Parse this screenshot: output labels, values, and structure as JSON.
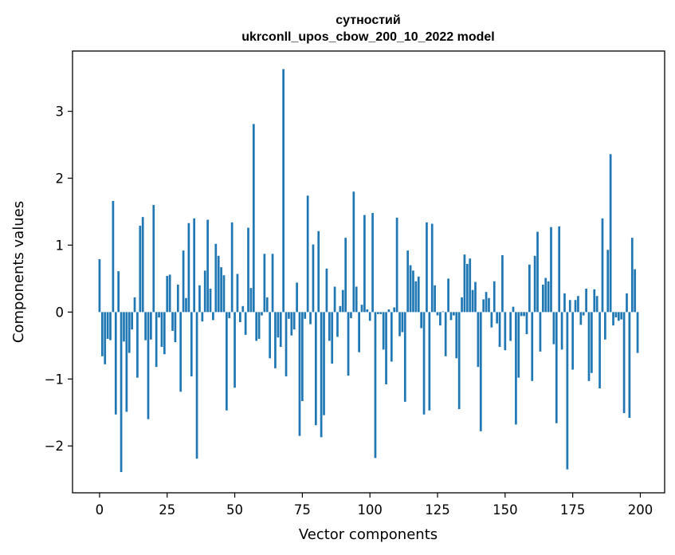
{
  "chart_data": {
    "type": "bar",
    "title_line1": "сутностий",
    "title_line2": "ukrconll_upos_cbow_200_10_2022 model",
    "xlabel": "Vector components",
    "ylabel": "Components values",
    "xlim": [
      -10,
      209
    ],
    "ylim": [
      -2.7,
      3.9
    ],
    "xticks": [
      0,
      25,
      50,
      75,
      100,
      125,
      150,
      175,
      200
    ],
    "xtick_labels": [
      "0",
      "25",
      "50",
      "75",
      "100",
      "125",
      "150",
      "175",
      "200"
    ],
    "yticks": [
      -2,
      -1,
      0,
      1,
      2,
      3
    ],
    "ytick_labels": [
      "−2",
      "−1",
      "0",
      "1",
      "2",
      "3"
    ],
    "grid": false,
    "bar_color": "#1f77b4",
    "x": [
      0,
      1,
      2,
      3,
      4,
      5,
      6,
      7,
      8,
      9,
      10,
      11,
      12,
      13,
      14,
      15,
      16,
      17,
      18,
      19,
      20,
      21,
      22,
      23,
      24,
      25,
      26,
      27,
      28,
      29,
      30,
      31,
      32,
      33,
      34,
      35,
      36,
      37,
      38,
      39,
      40,
      41,
      42,
      43,
      44,
      45,
      46,
      47,
      48,
      49,
      50,
      51,
      52,
      53,
      54,
      55,
      56,
      57,
      58,
      59,
      60,
      61,
      62,
      63,
      64,
      65,
      66,
      67,
      68,
      69,
      70,
      71,
      72,
      73,
      74,
      75,
      76,
      77,
      78,
      79,
      80,
      81,
      82,
      83,
      84,
      85,
      86,
      87,
      88,
      89,
      90,
      91,
      92,
      93,
      94,
      95,
      96,
      97,
      98,
      99,
      100,
      101,
      102,
      103,
      104,
      105,
      106,
      107,
      108,
      109,
      110,
      111,
      112,
      113,
      114,
      115,
      116,
      117,
      118,
      119,
      120,
      121,
      122,
      123,
      124,
      125,
      126,
      127,
      128,
      129,
      130,
      131,
      132,
      133,
      134,
      135,
      136,
      137,
      138,
      139,
      140,
      141,
      142,
      143,
      144,
      145,
      146,
      147,
      148,
      149,
      150,
      151,
      152,
      153,
      154,
      155,
      156,
      157,
      158,
      159,
      160,
      161,
      162,
      163,
      164,
      165,
      166,
      167,
      168,
      169,
      170,
      171,
      172,
      173,
      174,
      175,
      176,
      177,
      178,
      179,
      180,
      181,
      182,
      183,
      184,
      185,
      186,
      187,
      188,
      189,
      190,
      191,
      192,
      193,
      194,
      195,
      196,
      197,
      198,
      199
    ],
    "values": [
      0.79,
      -0.66,
      -0.78,
      -0.4,
      -0.42,
      1.66,
      -1.53,
      0.61,
      -2.39,
      -0.44,
      -1.49,
      -0.61,
      -0.26,
      0.22,
      -0.98,
      1.29,
      1.42,
      -0.42,
      -1.6,
      -0.41,
      1.6,
      -0.82,
      -0.08,
      -0.52,
      -0.63,
      0.54,
      0.56,
      -0.28,
      -0.45,
      0.41,
      -1.19,
      0.92,
      0.21,
      1.33,
      -0.96,
      1.4,
      -2.19,
      0.4,
      -0.14,
      0.62,
      1.38,
      0.35,
      -0.12,
      1.02,
      0.84,
      0.67,
      0.55,
      -1.47,
      -0.09,
      1.34,
      -1.13,
      0.57,
      -0.15,
      0.09,
      -0.34,
      1.26,
      0.36,
      2.81,
      -0.43,
      -0.4,
      -0.05,
      0.87,
      0.22,
      -0.69,
      0.87,
      -0.84,
      -0.38,
      -0.52,
      3.63,
      -0.96,
      -0.1,
      -0.35,
      -0.26,
      0.44,
      -1.85,
      -1.33,
      -0.1,
      1.74,
      -0.18,
      1.01,
      -1.69,
      1.21,
      -1.87,
      -1.54,
      0.65,
      -0.43,
      -0.77,
      0.38,
      -0.37,
      0.09,
      0.33,
      1.11,
      -0.95,
      -0.09,
      1.8,
      0.38,
      -0.6,
      0.11,
      1.45,
      0.04,
      -0.13,
      1.48,
      -2.18,
      -0.03,
      -0.03,
      -0.56,
      -1.08,
      0.04,
      -0.74,
      0.07,
      1.41,
      -0.36,
      -0.3,
      -1.34,
      0.92,
      0.7,
      0.62,
      0.46,
      0.53,
      -0.24,
      -1.53,
      1.34,
      -1.47,
      1.32,
      0.4,
      -0.05,
      -0.2,
      0.01,
      -0.66,
      0.5,
      -0.12,
      -0.05,
      -0.69,
      -1.45,
      0.22,
      0.86,
      0.72,
      0.8,
      0.33,
      0.45,
      -0.82,
      -1.78,
      0.19,
      0.3,
      0.21,
      -0.23,
      0.46,
      -0.17,
      -0.52,
      0.85,
      -0.57,
      0.0,
      -0.43,
      0.08,
      -1.68,
      -0.98,
      -0.06,
      -0.06,
      -0.33,
      0.71,
      -1.03,
      0.84,
      1.2,
      -0.59,
      0.41,
      0.51,
      0.46,
      1.27,
      -0.48,
      -1.66,
      1.28,
      -0.56,
      0.28,
      -2.35,
      0.18,
      -0.86,
      0.18,
      0.24,
      -0.19,
      -0.05,
      0.35,
      -1.03,
      -0.91,
      0.34,
      0.24,
      -1.14,
      1.4,
      -0.41,
      0.93,
      2.36,
      -0.2,
      -0.08,
      -0.13,
      -0.11,
      -1.51,
      0.28,
      -1.58,
      1.11,
      0.64,
      -0.61
    ]
  }
}
